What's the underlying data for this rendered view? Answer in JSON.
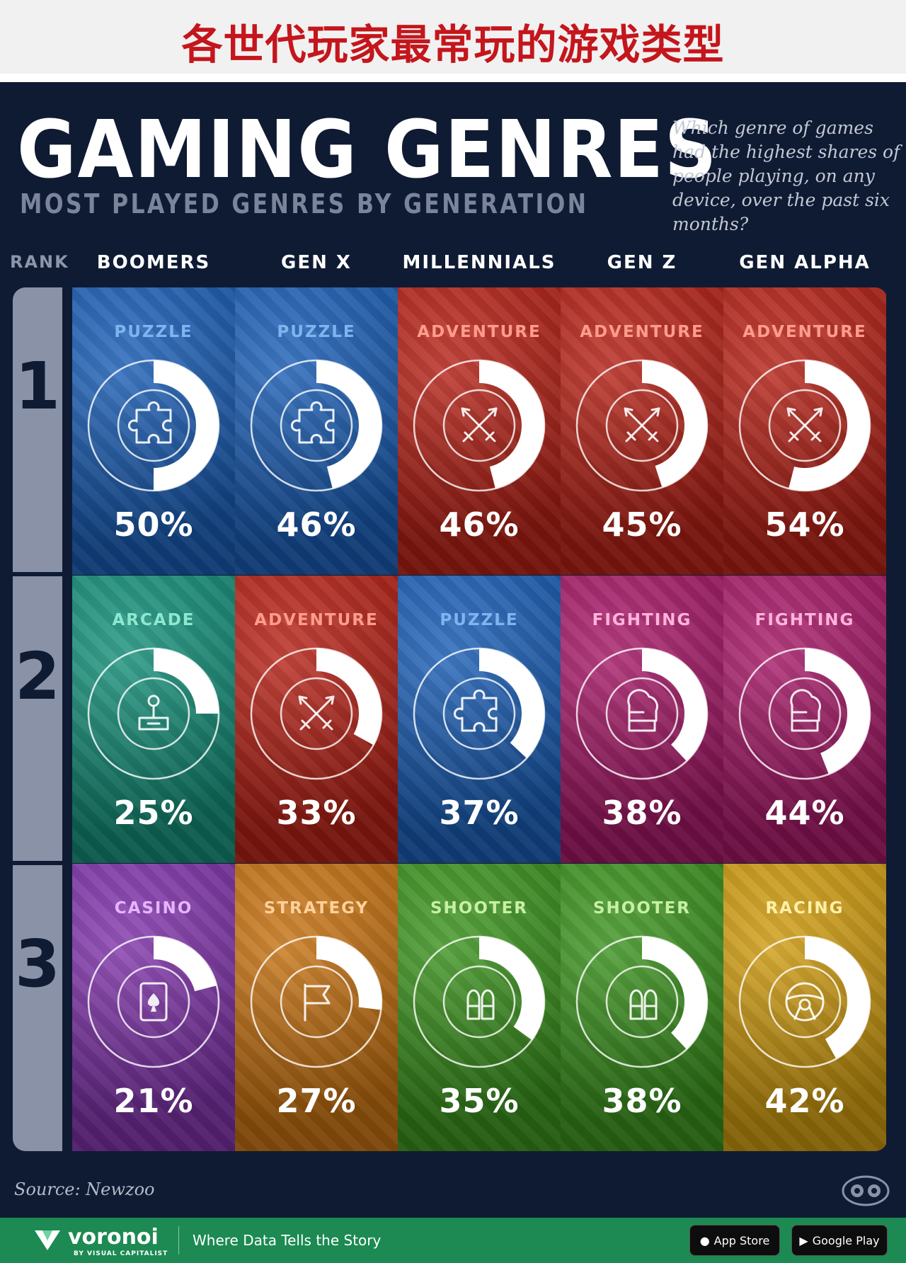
{
  "banner": {
    "title": "各世代玩家最常玩的游戏类型"
  },
  "header": {
    "title": "GAMING GENRES",
    "subtitle": "MOST PLAYED GENRES BY GENERATION",
    "question": "Which genre of games had the highest shares of people playing, on any device, over the past six months?"
  },
  "rank_label": "RANK",
  "ranks": [
    "1",
    "2",
    "3"
  ],
  "chart_data": {
    "type": "table",
    "generations": [
      "BOOMERS",
      "GEN X",
      "MILLENNIALS",
      "GEN Z",
      "GEN ALPHA"
    ],
    "rows": [
      {
        "rank": "1",
        "cells": [
          {
            "genre": "PUZZLE",
            "value": 50,
            "label": "50%",
            "icon": "puzzle-icon",
            "color": "#1a64c4"
          },
          {
            "genre": "PUZZLE",
            "value": 46,
            "label": "46%",
            "icon": "puzzle-icon",
            "color": "#1a64c4"
          },
          {
            "genre": "ADVENTURE",
            "value": 46,
            "label": "46%",
            "icon": "swords-icon",
            "color": "#c42216"
          },
          {
            "genre": "ADVENTURE",
            "value": 45,
            "label": "45%",
            "icon": "swords-icon",
            "color": "#c42216"
          },
          {
            "genre": "ADVENTURE",
            "value": 54,
            "label": "54%",
            "icon": "swords-icon",
            "color": "#c42216"
          }
        ]
      },
      {
        "rank": "2",
        "cells": [
          {
            "genre": "ARCADE",
            "value": 25,
            "label": "25%",
            "icon": "joystick-icon",
            "color": "#149a82"
          },
          {
            "genre": "ADVENTURE",
            "value": 33,
            "label": "33%",
            "icon": "swords-icon",
            "color": "#c42216"
          },
          {
            "genre": "PUZZLE",
            "value": 37,
            "label": "37%",
            "icon": "puzzle-icon",
            "color": "#1a64c4"
          },
          {
            "genre": "FIGHTING",
            "value": 38,
            "label": "38%",
            "icon": "boxing-glove-icon",
            "color": "#b3186e"
          },
          {
            "genre": "FIGHTING",
            "value": 44,
            "label": "44%",
            "icon": "boxing-glove-icon",
            "color": "#b3186e"
          }
        ]
      },
      {
        "rank": "3",
        "cells": [
          {
            "genre": "CASINO",
            "value": 21,
            "label": "21%",
            "icon": "playing-card-icon",
            "color": "#8a36b8"
          },
          {
            "genre": "STRATEGY",
            "value": 27,
            "label": "27%",
            "icon": "flag-icon",
            "color": "#d67a10"
          },
          {
            "genre": "SHOOTER",
            "value": 35,
            "label": "35%",
            "icon": "bullets-icon",
            "color": "#3e9e1e"
          },
          {
            "genre": "SHOOTER",
            "value": 38,
            "label": "38%",
            "icon": "bullets-icon",
            "color": "#3e9e1e"
          },
          {
            "genre": "RACING",
            "value": 42,
            "label": "42%",
            "icon": "steering-wheel-icon",
            "color": "#e0a70e"
          }
        ]
      }
    ]
  },
  "genre_text_colors": {
    "PUZZLE": "#7fb4f0",
    "ADVENTURE": "#ff9c8c",
    "ARCADE": "#8ee8d0",
    "FIGHTING": "#ffb4dc",
    "CASINO": "#e6b4ff",
    "STRATEGY": "#ffd09a",
    "SHOOTER": "#c8f0a4",
    "RACING": "#fff0a8"
  },
  "footer": {
    "source": "Source: Newzoo",
    "brand": "voronoi",
    "brand_sub": "BY VISUAL CAPITALIST",
    "tagline": "Where Data Tells the Story",
    "app_store": "App Store",
    "google_play": "Google Play"
  }
}
